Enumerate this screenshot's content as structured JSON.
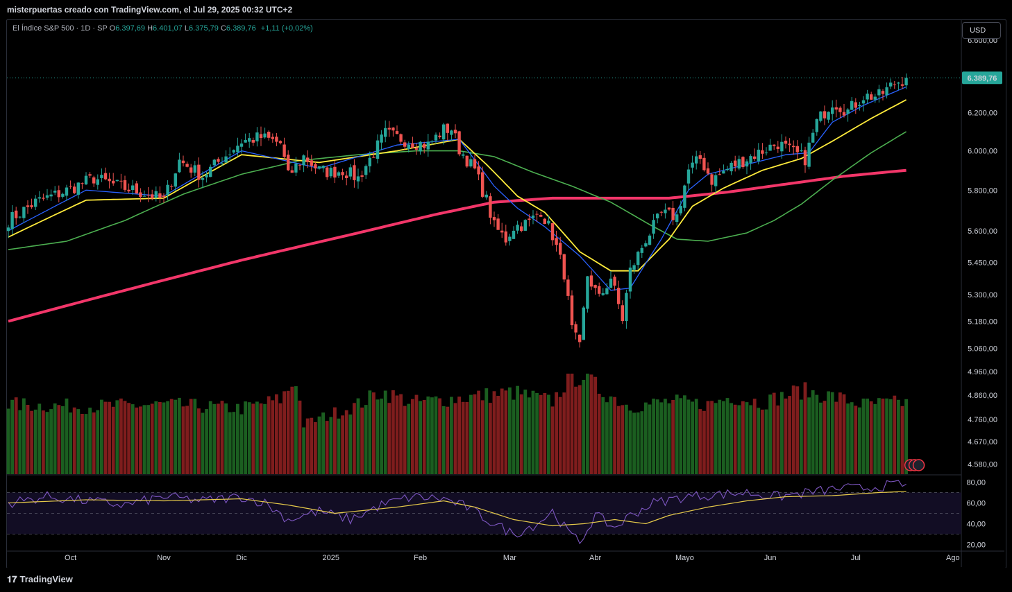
{
  "header": {
    "title": "misterpuertas creado con TradingView.com, el Jul 29, 2025 00:32 UTC+2"
  },
  "legend": {
    "symbol": "El Índice S&P 500 · 1D · SP",
    "o_label": "O",
    "o_value": "6.397,69",
    "h_label": "H",
    "h_value": "6.401,07",
    "l_label": "L",
    "l_value": "6.375,79",
    "c_label": "C",
    "c_value": "6.389,76",
    "change": "+1,11 (+0,02%)"
  },
  "currency_button": "USD",
  "footer": {
    "brand": "TradingView",
    "logo_mark": "𝟏𝟕"
  },
  "colors": {
    "up": "#26a69a",
    "down": "#ef5350",
    "ma_fast": "#2962ff",
    "ma_mid": "#ffeb3b",
    "ma_slow": "#4caf50",
    "ma_200": "#f23669",
    "rsi": "#7e57c2",
    "rsi_ma": "#e5c94a",
    "vol_up": "#1b5e20",
    "vol_down": "#7f1d1d",
    "last_price_bg": "#26a69a"
  },
  "chart_data": {
    "type": "candlestick",
    "title": "El Índice S&P 500 · 1D · SP",
    "last_price": "6.389,76",
    "price_ticks": [
      "6.600,00",
      "6.200,00",
      "6.000,00",
      "5.800,00",
      "5.600,00",
      "5.450,00",
      "5.300,00",
      "5.180,00",
      "5.060,00",
      "4.960,00",
      "4.860,00",
      "4.760,00",
      "4.670,00",
      "4.580,00"
    ],
    "price_tick_values": [
      6600,
      6200,
      6000,
      5800,
      5600,
      5450,
      5300,
      5180,
      5060,
      4960,
      4860,
      4760,
      4670,
      4580
    ],
    "x_labels": [
      "Oct",
      "Nov",
      "Dic",
      "2025",
      "Feb",
      "Mar",
      "Abr",
      "Mayo",
      "Jun",
      "Jul",
      "Ago"
    ],
    "x_label_index": [
      16,
      40,
      60,
      83,
      106,
      129,
      151,
      174,
      196,
      218,
      243
    ],
    "scale": "log",
    "price_range": [
      4540,
      6720
    ],
    "close_anchors": [
      [
        0,
        5650
      ],
      [
        7,
        5740
      ],
      [
        14,
        5790
      ],
      [
        22,
        5860
      ],
      [
        30,
        5810
      ],
      [
        36,
        5780
      ],
      [
        40,
        5750
      ],
      [
        44,
        5950
      ],
      [
        50,
        5870
      ],
      [
        55,
        5960
      ],
      [
        60,
        6050
      ],
      [
        65,
        6070
      ],
      [
        70,
        6040
      ],
      [
        72,
        5870
      ],
      [
        76,
        5970
      ],
      [
        80,
        5900
      ],
      [
        83,
        5890
      ],
      [
        86,
        5900
      ],
      [
        90,
        5860
      ],
      [
        94,
        5990
      ],
      [
        97,
        6090
      ],
      [
        103,
        6050
      ],
      [
        108,
        6030
      ],
      [
        112,
        6110
      ],
      [
        114,
        6115
      ],
      [
        116,
        6010
      ],
      [
        120,
        5900
      ],
      [
        123,
        5750
      ],
      [
        125,
        5620
      ],
      [
        128,
        5560
      ],
      [
        130,
        5620
      ],
      [
        134,
        5640
      ],
      [
        137,
        5700
      ],
      [
        140,
        5580
      ],
      [
        143,
        5400
      ],
      [
        145,
        5140
      ],
      [
        147,
        5060
      ],
      [
        149,
        5390
      ],
      [
        152,
        5280
      ],
      [
        155,
        5380
      ],
      [
        158,
        5190
      ],
      [
        160,
        5410
      ],
      [
        164,
        5560
      ],
      [
        168,
        5680
      ],
      [
        172,
        5670
      ],
      [
        175,
        5900
      ],
      [
        178,
        5960
      ],
      [
        181,
        5850
      ],
      [
        186,
        5920
      ],
      [
        190,
        5960
      ],
      [
        194,
        6000
      ],
      [
        198,
        6040
      ],
      [
        201,
        6000
      ],
      [
        205,
        5960
      ],
      [
        208,
        6150
      ],
      [
        212,
        6260
      ],
      [
        216,
        6210
      ],
      [
        220,
        6290
      ],
      [
        224,
        6290
      ],
      [
        228,
        6360
      ],
      [
        231,
        6389.76
      ]
    ],
    "ma_fast_anchors": [
      [
        0,
        5600
      ],
      [
        20,
        5800
      ],
      [
        40,
        5770
      ],
      [
        60,
        6000
      ],
      [
        80,
        5910
      ],
      [
        100,
        6030
      ],
      [
        116,
        6060
      ],
      [
        125,
        5820
      ],
      [
        131,
        5710
      ],
      [
        138,
        5620
      ],
      [
        147,
        5480
      ],
      [
        155,
        5320
      ],
      [
        160,
        5330
      ],
      [
        168,
        5560
      ],
      [
        175,
        5800
      ],
      [
        180,
        5880
      ],
      [
        190,
        5930
      ],
      [
        200,
        5980
      ],
      [
        206,
        5990
      ],
      [
        212,
        6150
      ],
      [
        220,
        6240
      ],
      [
        231,
        6340
      ]
    ],
    "ma_mid_anchors": [
      [
        0,
        5570
      ],
      [
        20,
        5750
      ],
      [
        40,
        5760
      ],
      [
        60,
        5980
      ],
      [
        80,
        5940
      ],
      [
        100,
        6000
      ],
      [
        116,
        6060
      ],
      [
        123,
        5930
      ],
      [
        131,
        5770
      ],
      [
        138,
        5690
      ],
      [
        147,
        5500
      ],
      [
        155,
        5410
      ],
      [
        162,
        5410
      ],
      [
        170,
        5560
      ],
      [
        176,
        5720
      ],
      [
        184,
        5810
      ],
      [
        194,
        5900
      ],
      [
        204,
        5960
      ],
      [
        212,
        6050
      ],
      [
        222,
        6170
      ],
      [
        231,
        6270
      ]
    ],
    "ma_slow_anchors": [
      [
        0,
        5510
      ],
      [
        15,
        5550
      ],
      [
        30,
        5650
      ],
      [
        45,
        5780
      ],
      [
        60,
        5880
      ],
      [
        75,
        5950
      ],
      [
        90,
        5980
      ],
      [
        105,
        6000
      ],
      [
        116,
        6000
      ],
      [
        125,
        5970
      ],
      [
        135,
        5890
      ],
      [
        145,
        5820
      ],
      [
        155,
        5740
      ],
      [
        165,
        5630
      ],
      [
        172,
        5560
      ],
      [
        180,
        5550
      ],
      [
        190,
        5590
      ],
      [
        197,
        5650
      ],
      [
        204,
        5730
      ],
      [
        212,
        5850
      ],
      [
        222,
        5990
      ],
      [
        231,
        6100
      ]
    ],
    "ma_200_anchors": [
      [
        0,
        5180
      ],
      [
        30,
        5320
      ],
      [
        60,
        5460
      ],
      [
        90,
        5590
      ],
      [
        110,
        5680
      ],
      [
        125,
        5740
      ],
      [
        140,
        5760
      ],
      [
        155,
        5760
      ],
      [
        170,
        5760
      ],
      [
        185,
        5790
      ],
      [
        200,
        5830
      ],
      [
        215,
        5870
      ],
      [
        231,
        5900
      ]
    ],
    "volume_anchors": [
      [
        0,
        0.7
      ],
      [
        20,
        0.68
      ],
      [
        40,
        0.7
      ],
      [
        60,
        0.66
      ],
      [
        70,
        0.75
      ],
      [
        74,
        0.95
      ],
      [
        76,
        0.5
      ],
      [
        90,
        0.7
      ],
      [
        96,
        0.83
      ],
      [
        104,
        0.72
      ],
      [
        120,
        0.78
      ],
      [
        130,
        0.82
      ],
      [
        140,
        0.73
      ],
      [
        144,
        0.95
      ],
      [
        148,
        1.0
      ],
      [
        152,
        0.85
      ],
      [
        160,
        0.68
      ],
      [
        170,
        0.73
      ],
      [
        180,
        0.7
      ],
      [
        186,
        0.78
      ],
      [
        194,
        0.72
      ],
      [
        204,
        0.84
      ],
      [
        212,
        0.78
      ],
      [
        220,
        0.7
      ],
      [
        231,
        0.72
      ]
    ],
    "rsi": {
      "ticks": [
        "80,00",
        "60,00",
        "40,00",
        "20,00"
      ],
      "tick_values": [
        80,
        60,
        40,
        20
      ],
      "levels": [
        70,
        50,
        30
      ],
      "anchors": [
        [
          0,
          60
        ],
        [
          10,
          66
        ],
        [
          20,
          62
        ],
        [
          30,
          58
        ],
        [
          40,
          66
        ],
        [
          50,
          62
        ],
        [
          60,
          66
        ],
        [
          66,
          60
        ],
        [
          72,
          44
        ],
        [
          80,
          52
        ],
        [
          88,
          44
        ],
        [
          96,
          58
        ],
        [
          104,
          66
        ],
        [
          112,
          64
        ],
        [
          118,
          56
        ],
        [
          124,
          42
        ],
        [
          130,
          30
        ],
        [
          136,
          40
        ],
        [
          140,
          52
        ],
        [
          144,
          32
        ],
        [
          147,
          22
        ],
        [
          151,
          48
        ],
        [
          156,
          36
        ],
        [
          160,
          48
        ],
        [
          166,
          60
        ],
        [
          174,
          66
        ],
        [
          182,
          68
        ],
        [
          190,
          70
        ],
        [
          198,
          66
        ],
        [
          206,
          70
        ],
        [
          214,
          74
        ],
        [
          220,
          74
        ],
        [
          224,
          76
        ],
        [
          231,
          78
        ]
      ],
      "ma_anchors": [
        [
          0,
          60
        ],
        [
          20,
          63
        ],
        [
          40,
          62
        ],
        [
          60,
          64
        ],
        [
          72,
          58
        ],
        [
          84,
          50
        ],
        [
          100,
          56
        ],
        [
          112,
          62
        ],
        [
          120,
          56
        ],
        [
          130,
          44
        ],
        [
          140,
          38
        ],
        [
          148,
          40
        ],
        [
          156,
          44
        ],
        [
          164,
          40
        ],
        [
          170,
          48
        ],
        [
          180,
          56
        ],
        [
          190,
          62
        ],
        [
          200,
          66
        ],
        [
          212,
          67
        ],
        [
          224,
          70
        ],
        [
          231,
          71
        ]
      ]
    }
  }
}
